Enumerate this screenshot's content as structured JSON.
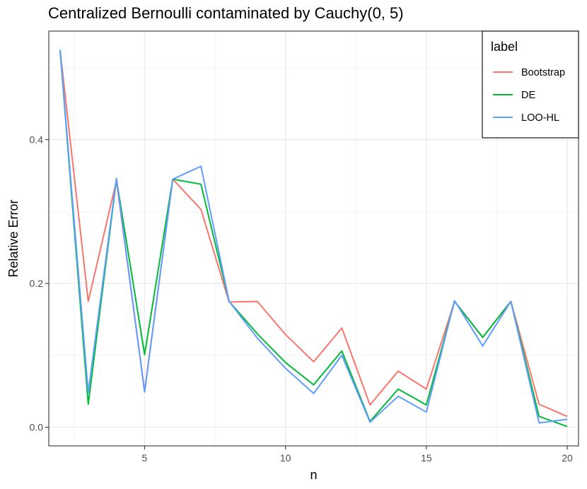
{
  "chart_data": {
    "type": "line",
    "title": "Centralized Bernoulli contaminated by Cauchy(0, 5)",
    "xlabel": "n",
    "ylabel": "Relative Error",
    "xlim": [
      1.6,
      20.4
    ],
    "ylim": [
      -0.026,
      0.551
    ],
    "xticks": [
      5,
      10,
      15,
      20
    ],
    "yticks": [
      0.0,
      0.2,
      0.4
    ],
    "ytick_labels": [
      "0.0",
      "0.2",
      "0.4"
    ],
    "grid": true,
    "legend": {
      "title": "label",
      "placement": "top-right"
    },
    "x": [
      2,
      3,
      4,
      5,
      6,
      7,
      8,
      9,
      10,
      11,
      12,
      13,
      14,
      15,
      16,
      17,
      18,
      19,
      20
    ],
    "series": [
      {
        "name": "Bootstrap",
        "color": "#F8766D",
        "values": [
          0.525,
          0.175,
          0.343,
          0.05,
          0.345,
          0.303,
          0.174,
          0.175,
          0.129,
          0.091,
          0.138,
          0.031,
          0.078,
          0.053,
          0.175,
          0.125,
          0.175,
          0.032,
          0.015
        ]
      },
      {
        "name": "DE",
        "color": "#00BA38",
        "values": [
          0.525,
          0.032,
          0.345,
          0.101,
          0.345,
          0.338,
          0.175,
          0.13,
          0.09,
          0.059,
          0.106,
          0.008,
          0.053,
          0.031,
          0.175,
          0.125,
          0.175,
          0.015,
          0.001
        ]
      },
      {
        "name": "LOO-HL",
        "color": "#619CFF",
        "values": [
          0.525,
          0.048,
          0.346,
          0.049,
          0.345,
          0.363,
          0.175,
          0.124,
          0.082,
          0.047,
          0.1,
          0.007,
          0.043,
          0.021,
          0.176,
          0.113,
          0.175,
          0.006,
          0.011
        ]
      }
    ]
  }
}
